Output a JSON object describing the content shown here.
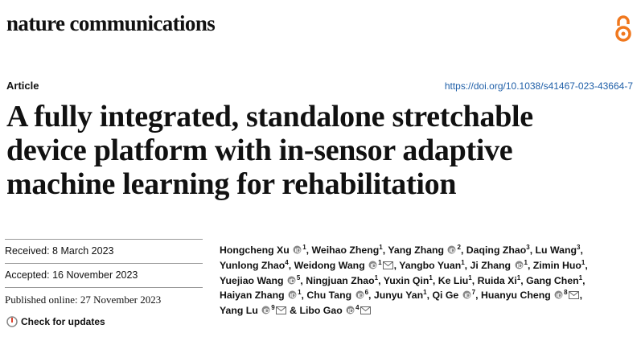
{
  "header": {
    "journal": "nature communications",
    "article_type": "Article",
    "doi": "https://doi.org/10.1038/s41467-023-43664-7"
  },
  "title": {
    "lines": [
      "A fully integrated, standalone stretchable",
      "device platform with in-sensor adaptive",
      "machine learning for rehabilitation"
    ]
  },
  "dates": {
    "received": "Received: 8 March 2023",
    "accepted": "Accepted: 16 November 2023",
    "published": "Published online: 27 November 2023",
    "check_updates": "Check for updates"
  },
  "authors": {
    "separator": ",",
    "last_connector": "&",
    "lines": [
      [
        {
          "name": "Hongcheng Xu",
          "aff": "1",
          "orcid": true,
          "email": false
        },
        {
          "name": "Weihao Zheng",
          "aff": "1",
          "orcid": false,
          "email": false
        },
        {
          "name": "Yang Zhang",
          "aff": "2",
          "orcid": true,
          "email": false
        },
        {
          "name": "Daqing Zhao",
          "aff": "3",
          "orcid": false,
          "email": false
        },
        {
          "name": "Lu Wang",
          "aff": "3",
          "orcid": false,
          "email": false
        }
      ],
      [
        {
          "name": "Yunlong Zhao",
          "aff": "4",
          "orcid": false,
          "email": false
        },
        {
          "name": "Weidong Wang",
          "aff": "1",
          "orcid": true,
          "email": true
        },
        {
          "name": "Yangbo Yuan",
          "aff": "1",
          "orcid": false,
          "email": false
        },
        {
          "name": "Ji Zhang",
          "aff": "1",
          "orcid": true,
          "email": false
        },
        {
          "name": "Zimin Huo",
          "aff": "1",
          "orcid": false,
          "email": false
        }
      ],
      [
        {
          "name": "Yuejiao Wang",
          "aff": "5",
          "orcid": true,
          "email": false
        },
        {
          "name": "Ningjuan Zhao",
          "aff": "1",
          "orcid": false,
          "email": false
        },
        {
          "name": "Yuxin Qin",
          "aff": "1",
          "orcid": false,
          "email": false
        },
        {
          "name": "Ke Liu",
          "aff": "1",
          "orcid": false,
          "email": false
        },
        {
          "name": "Ruida Xi",
          "aff": "1",
          "orcid": false,
          "email": false
        },
        {
          "name": "Gang Chen",
          "aff": "1",
          "orcid": false,
          "email": false
        }
      ],
      [
        {
          "name": "Haiyan Zhang",
          "aff": "1",
          "orcid": true,
          "email": false
        },
        {
          "name": "Chu Tang",
          "aff": "6",
          "orcid": true,
          "email": false
        },
        {
          "name": "Junyu Yan",
          "aff": "1",
          "orcid": false,
          "email": false
        },
        {
          "name": "Qi Ge",
          "aff": "7",
          "orcid": true,
          "email": false
        },
        {
          "name": "Huanyu Cheng",
          "aff": "8",
          "orcid": true,
          "email": true
        }
      ],
      [
        {
          "name": "Yang Lu",
          "aff": "9",
          "orcid": true,
          "email": true
        },
        {
          "name": "Libo Gao",
          "aff": "4",
          "orcid": true,
          "email": true
        }
      ]
    ]
  }
}
